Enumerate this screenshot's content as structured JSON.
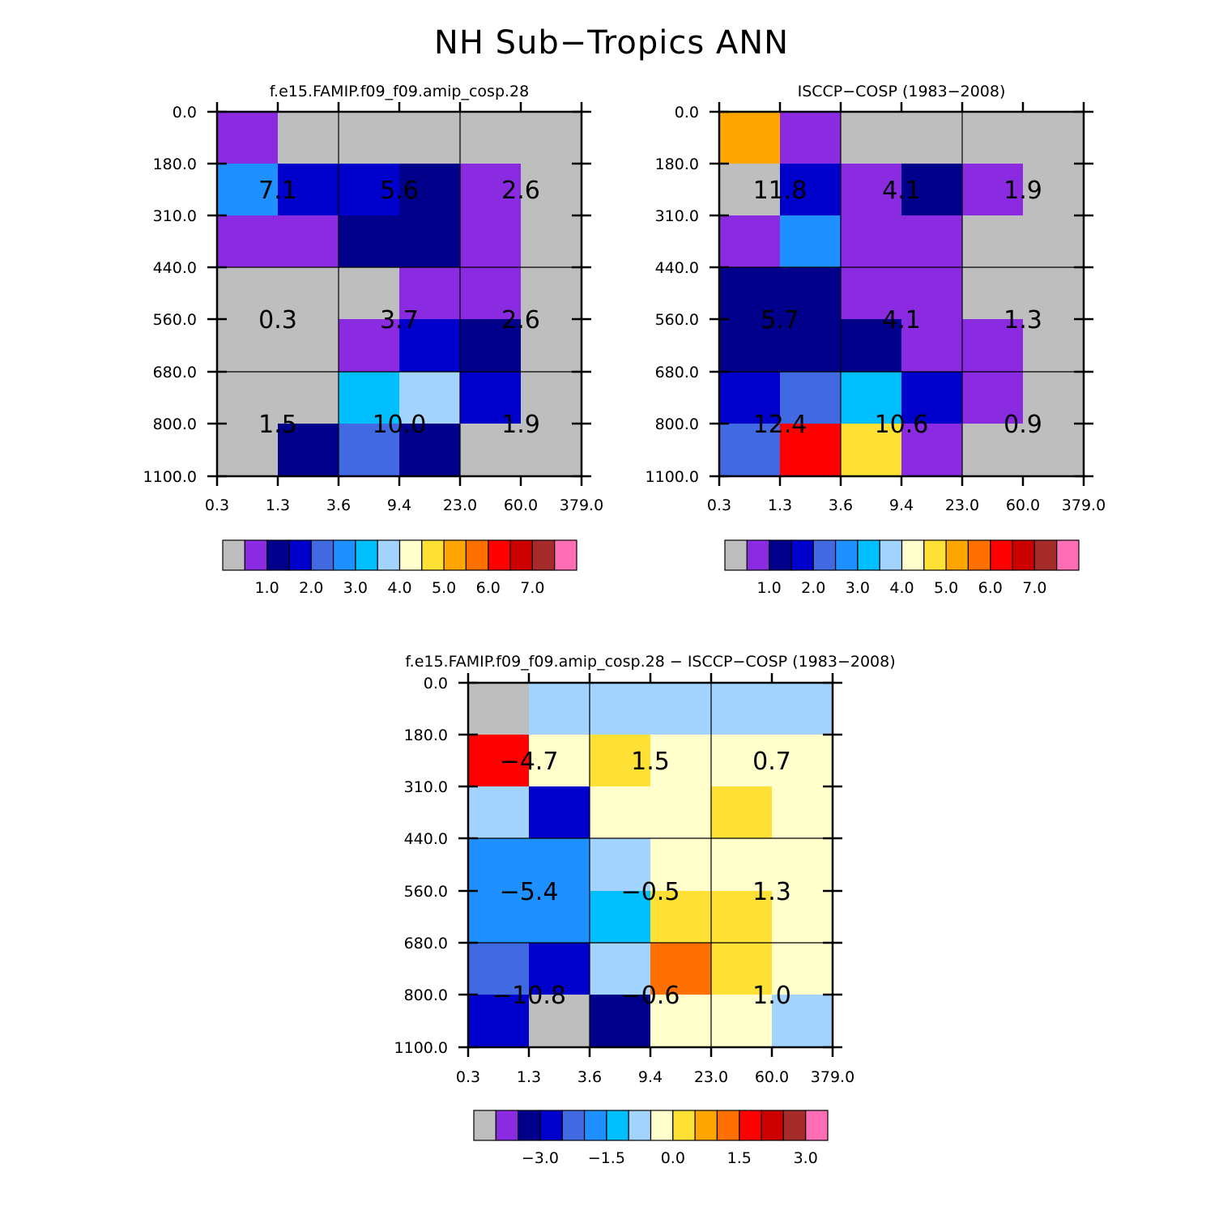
{
  "figure_title": "NH Sub−Tropics ANN",
  "colors": {
    "palette": [
      "#BEBEBE",
      "#8A2BE2",
      "#00008B",
      "#0000CD",
      "#4169E1",
      "#1E90FF",
      "#00BFFF",
      "#A3D3FF",
      "#FFFFCC",
      "#FFE135",
      "#FFA500",
      "#FF7000",
      "#FF0000",
      "#CD0000",
      "#A52A2A",
      "#FF6EB4"
    ]
  },
  "chart_data": [
    {
      "type": "heatmap",
      "title": "f.e15.FAMIP.f09_f09.amip_cosp.28",
      "x_ticks": [
        "0.3",
        "1.3",
        "3.6",
        "9.4",
        "23.0",
        "60.0",
        "379.0"
      ],
      "y_ticks": [
        "0.0",
        "180.0",
        "310.0",
        "440.0",
        "560.0",
        "680.0",
        "800.0",
        "1100.0"
      ],
      "cell_color_index": [
        [
          1,
          0,
          0,
          0,
          0,
          0
        ],
        [
          5,
          3,
          3,
          2,
          1,
          0
        ],
        [
          1,
          1,
          2,
          2,
          1,
          0
        ],
        [
          0,
          0,
          0,
          1,
          1,
          0
        ],
        [
          0,
          0,
          1,
          3,
          2,
          0
        ],
        [
          0,
          0,
          6,
          7,
          3,
          0
        ],
        [
          0,
          2,
          4,
          2,
          0,
          0
        ]
      ],
      "annotations": [
        {
          "row": 1.5,
          "col": 1,
          "text": "7.1"
        },
        {
          "row": 1.5,
          "col": 3,
          "text": "5.6"
        },
        {
          "row": 1.5,
          "col": 5,
          "text": "2.6"
        },
        {
          "row": 4,
          "col": 1,
          "text": "0.3"
        },
        {
          "row": 4,
          "col": 3,
          "text": "3.7"
        },
        {
          "row": 4,
          "col": 5,
          "text": "2.6"
        },
        {
          "row": 6,
          "col": 1,
          "text": "1.5"
        },
        {
          "row": 6,
          "col": 3,
          "text": "10.0"
        },
        {
          "row": 6,
          "col": 5,
          "text": "1.9"
        }
      ],
      "colorbar_labels": [
        "1.0",
        "2.0",
        "3.0",
        "4.0",
        "5.0",
        "6.0",
        "7.0"
      ]
    },
    {
      "type": "heatmap",
      "title": "ISCCP−COSP (1983−2008)",
      "x_ticks": [
        "0.3",
        "1.3",
        "3.6",
        "9.4",
        "23.0",
        "60.0",
        "379.0"
      ],
      "y_ticks": [
        "0.0",
        "180.0",
        "310.0",
        "440.0",
        "560.0",
        "680.0",
        "800.0",
        "1100.0"
      ],
      "cell_color_index": [
        [
          10,
          1,
          0,
          0,
          0,
          0
        ],
        [
          0,
          3,
          1,
          2,
          1,
          0
        ],
        [
          1,
          5,
          1,
          1,
          0,
          0
        ],
        [
          2,
          2,
          1,
          1,
          0,
          0
        ],
        [
          2,
          2,
          2,
          1,
          1,
          0
        ],
        [
          3,
          4,
          6,
          3,
          1,
          0
        ],
        [
          4,
          12,
          9,
          1,
          0,
          0
        ]
      ],
      "annotations": [
        {
          "row": 1.5,
          "col": 1,
          "text": "11.8"
        },
        {
          "row": 1.5,
          "col": 3,
          "text": "4.1"
        },
        {
          "row": 1.5,
          "col": 5,
          "text": "1.9"
        },
        {
          "row": 4,
          "col": 1,
          "text": "5.7"
        },
        {
          "row": 4,
          "col": 3,
          "text": "4.1"
        },
        {
          "row": 4,
          "col": 5,
          "text": "1.3"
        },
        {
          "row": 6,
          "col": 1,
          "text": "12.4"
        },
        {
          "row": 6,
          "col": 3,
          "text": "10.6"
        },
        {
          "row": 6,
          "col": 5,
          "text": "0.9"
        }
      ],
      "colorbar_labels": [
        "1.0",
        "2.0",
        "3.0",
        "4.0",
        "5.0",
        "6.0",
        "7.0"
      ]
    },
    {
      "type": "heatmap",
      "title": "f.e15.FAMIP.f09_f09.amip_cosp.28 − ISCCP−COSP (1983−2008)",
      "x_ticks": [
        "0.3",
        "1.3",
        "3.6",
        "9.4",
        "23.0",
        "60.0",
        "379.0"
      ],
      "y_ticks": [
        "0.0",
        "180.0",
        "310.0",
        "440.0",
        "560.0",
        "680.0",
        "800.0",
        "1100.0"
      ],
      "cell_color_index": [
        [
          0,
          7,
          7,
          7,
          7,
          7
        ],
        [
          12,
          8,
          9,
          8,
          8,
          8
        ],
        [
          7,
          3,
          8,
          8,
          9,
          8
        ],
        [
          5,
          5,
          7,
          8,
          8,
          8
        ],
        [
          5,
          5,
          6,
          9,
          9,
          8
        ],
        [
          4,
          3,
          7,
          11,
          9,
          8
        ],
        [
          3,
          0,
          2,
          8,
          8,
          7
        ]
      ],
      "annotations": [
        {
          "row": 1.5,
          "col": 1,
          "text": "−4.7"
        },
        {
          "row": 1.5,
          "col": 3,
          "text": "1.5"
        },
        {
          "row": 1.5,
          "col": 5,
          "text": "0.7"
        },
        {
          "row": 4,
          "col": 1,
          "text": "−5.4"
        },
        {
          "row": 4,
          "col": 3,
          "text": "−0.5"
        },
        {
          "row": 4,
          "col": 5,
          "text": "1.3"
        },
        {
          "row": 6,
          "col": 1,
          "text": "−10.8"
        },
        {
          "row": 6,
          "col": 3,
          "text": "−0.6"
        },
        {
          "row": 6,
          "col": 5,
          "text": "1.0"
        }
      ],
      "colorbar_labels": [
        "−3.0",
        "−1.5",
        "0.0",
        "1.5",
        "3.0"
      ]
    }
  ]
}
